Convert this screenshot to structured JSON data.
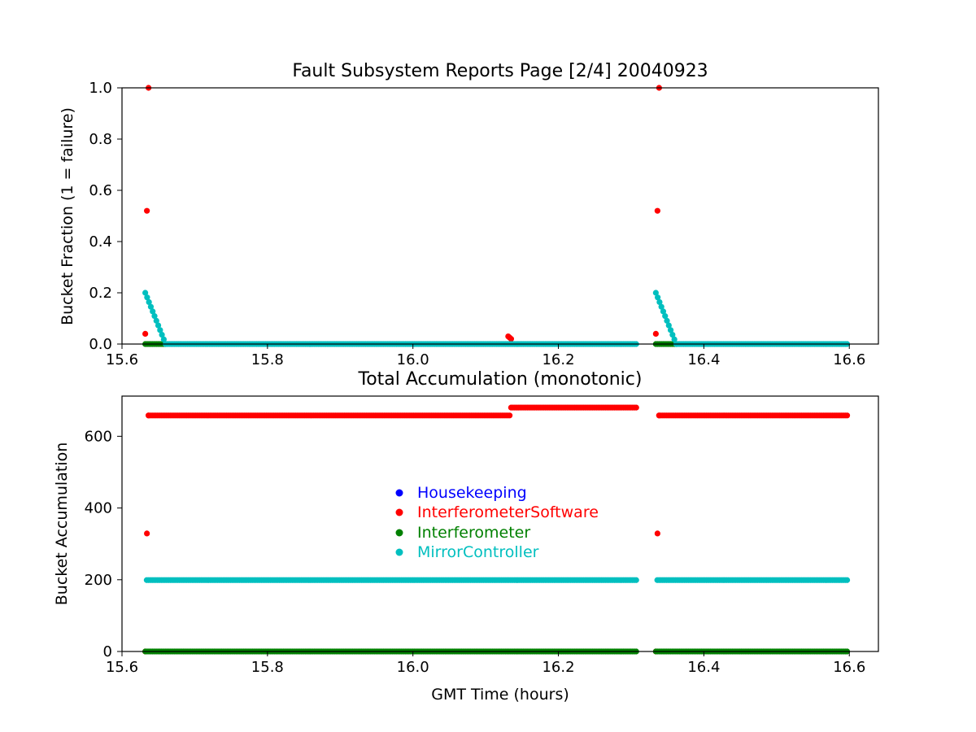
{
  "chart_data": [
    {
      "type": "scatter",
      "title": "Fault Subsystem Reports Page [2/4] 20040923",
      "xlabel": "",
      "ylabel": "Bucket Fraction (1 = failure)",
      "xlim": [
        15.6,
        16.64
      ],
      "ylim": [
        0.0,
        1.0
      ],
      "xticks": [
        "15.6",
        "15.8",
        "16.0",
        "16.2",
        "16.4",
        "16.6"
      ],
      "yticks": [
        "0.0",
        "0.2",
        "0.4",
        "0.6",
        "0.8",
        "1.0"
      ],
      "grid": false,
      "series": [
        {
          "name": "InterferometerSoftware",
          "color": "#ff0000",
          "segments": [
            {
              "x": [
                15.632,
                15.6365
              ],
              "y": [
                0.04,
                1.0
              ]
            },
            {
              "x": [
                16.131,
                16.135
              ],
              "y": [
                0.03,
                0.02
              ]
            },
            {
              "x": [
                16.334,
                16.3385
              ],
              "y": [
                0.04,
                1.0
              ]
            }
          ]
        },
        {
          "name": "Interferometer",
          "color": "#008000",
          "segments": [
            {
              "x": [
                15.632,
                15.66
              ],
              "y": [
                0.0,
                0.0
              ]
            },
            {
              "x": [
                16.334,
                16.362
              ],
              "y": [
                0.0,
                0.0
              ]
            }
          ]
        },
        {
          "name": "MirrorController",
          "color": "#00bfbf",
          "segments": [
            {
              "x": [
                15.632,
                15.66
              ],
              "y": [
                0.2,
                0.0
              ]
            },
            {
              "x": [
                15.66,
                16.307
              ],
              "y": [
                0.0,
                0.0
              ]
            },
            {
              "x": [
                16.334,
                16.362
              ],
              "y": [
                0.2,
                0.0
              ]
            },
            {
              "x": [
                16.362,
                16.597
              ],
              "y": [
                0.0,
                0.0
              ]
            }
          ]
        }
      ]
    },
    {
      "type": "scatter",
      "title": "Total Accumulation (monotonic)",
      "xlabel": "GMT Time (hours)",
      "ylabel": "Bucket Accumulation",
      "xlim": [
        15.6,
        16.64
      ],
      "ylim": [
        0,
        712
      ],
      "xticks": [
        "15.6",
        "15.8",
        "16.0",
        "16.2",
        "16.4",
        "16.6"
      ],
      "yticks": [
        "0",
        "200",
        "400",
        "600"
      ],
      "grid": false,
      "legend_position": "center",
      "series": [
        {
          "name": "Housekeeping",
          "color": "#0000ff",
          "segments": []
        },
        {
          "name": "InterferometerSoftware",
          "color": "#ff0000",
          "segments": [
            {
              "x": [
                15.632,
                15.6365
              ],
              "y": [
                0,
                658
              ]
            },
            {
              "x": [
                15.6365,
                16.133
              ],
              "y": [
                658,
                658
              ]
            },
            {
              "x": [
                16.135,
                16.307
              ],
              "y": [
                680,
                680
              ]
            },
            {
              "x": [
                16.334,
                16.3385
              ],
              "y": [
                0,
                658
              ]
            },
            {
              "x": [
                16.3385,
                16.597
              ],
              "y": [
                658,
                658
              ]
            }
          ]
        },
        {
          "name": "Interferometer",
          "color": "#008000",
          "segments": [
            {
              "x": [
                15.632,
                16.307
              ],
              "y": [
                0,
                0
              ]
            },
            {
              "x": [
                16.334,
                16.597
              ],
              "y": [
                0,
                0
              ]
            }
          ]
        },
        {
          "name": "MirrorController",
          "color": "#00bfbf",
          "segments": [
            {
              "x": [
                15.634,
                16.307
              ],
              "y": [
                199,
                199
              ]
            },
            {
              "x": [
                16.336,
                16.597
              ],
              "y": [
                199,
                199
              ]
            }
          ]
        }
      ]
    }
  ]
}
